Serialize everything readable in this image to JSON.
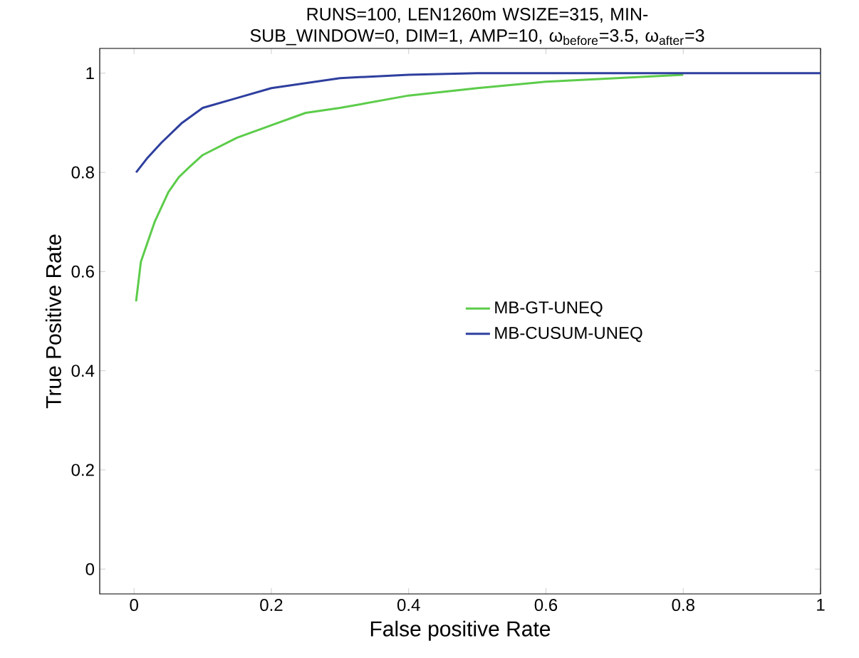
{
  "chart_data": {
    "type": "line",
    "title": "RUNS=100, LEN1260m WSIZE=315, MIN-SUB_WINDOW=0, DIM=1, AMP=10, ω$_{before}$=3.5, ω$_{after}$=3",
    "xlabel": "False positive Rate",
    "ylabel": "True Positive Rate",
    "xlim": [
      -0.05,
      1
    ],
    "ylim": [
      -0.05,
      1.05
    ],
    "xticks": [
      0,
      0.2,
      0.4,
      0.6,
      0.8,
      1
    ],
    "yticks": [
      0,
      0.2,
      0.4,
      0.6,
      0.8,
      1
    ],
    "legend": "right",
    "marker": "none",
    "line_style": "solid",
    "series": [
      {
        "name": "MB-GT-UNEQ",
        "color": "#5ccc4a",
        "x": [
          0.003,
          0.01,
          0.02,
          0.03,
          0.05,
          0.065,
          0.08,
          0.1,
          0.15,
          0.2,
          0.25,
          0.3,
          0.4,
          0.5,
          0.6,
          0.7,
          0.8
        ],
        "values": [
          0.54,
          0.62,
          0.66,
          0.7,
          0.76,
          0.79,
          0.81,
          0.835,
          0.87,
          0.895,
          0.92,
          0.93,
          0.955,
          0.97,
          0.983,
          0.99,
          0.997
        ]
      },
      {
        "name": "MB-CUSUM-UNEQ",
        "color": "#2e3f9e",
        "x": [
          0.003,
          0.02,
          0.04,
          0.07,
          0.1,
          0.15,
          0.2,
          0.3,
          0.4,
          0.5,
          1
        ],
        "values": [
          0.8,
          0.83,
          0.86,
          0.9,
          0.93,
          0.95,
          0.97,
          0.99,
          0.997,
          1,
          1
        ]
      }
    ]
  }
}
